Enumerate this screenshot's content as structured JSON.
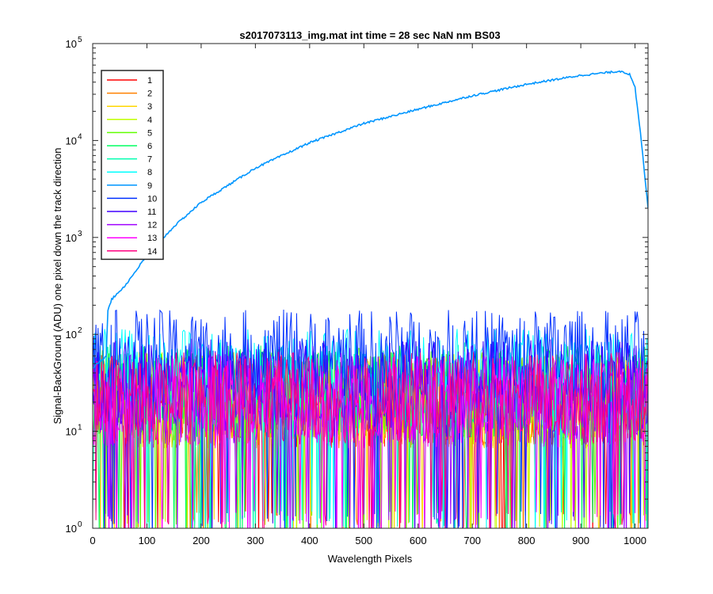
{
  "chart_data": {
    "type": "line",
    "title": "s2017073113_img.mat int time = 28 sec  NaN nm BS03",
    "xlabel": "Wavelength Pixels",
    "ylabel": "Signal-BackGround (ADU) one pixel down the track direction",
    "xlim": [
      0,
      1024
    ],
    "ylim": [
      1,
      100000
    ],
    "yscale": "log",
    "x_ticks": [
      "0",
      "100",
      "200",
      "300",
      "400",
      "500",
      "600",
      "700",
      "800",
      "900",
      "1000"
    ],
    "y_ticks": [
      {
        "base": "10",
        "exp": "0"
      },
      {
        "base": "10",
        "exp": "1"
      },
      {
        "base": "10",
        "exp": "2"
      },
      {
        "base": "10",
        "exp": "3"
      },
      {
        "base": "10",
        "exp": "4"
      },
      {
        "base": "10",
        "exp": "5"
      }
    ],
    "grid": false,
    "legend_position": "top-left",
    "series": [
      {
        "name": "1",
        "color": "#ff0000",
        "profile": "noise",
        "level": 20
      },
      {
        "name": "2",
        "color": "#ff8000",
        "profile": "noise",
        "level": 20
      },
      {
        "name": "3",
        "color": "#ffd700",
        "profile": "noise",
        "level": 20
      },
      {
        "name": "4",
        "color": "#c0ff00",
        "profile": "noise",
        "level": 22
      },
      {
        "name": "5",
        "color": "#60ff00",
        "profile": "noise",
        "level": 24
      },
      {
        "name": "6",
        "color": "#00ff60",
        "profile": "noise",
        "level": 26
      },
      {
        "name": "7",
        "color": "#00ffb0",
        "profile": "noise",
        "level": 28
      },
      {
        "name": "8",
        "color": "#00ffff",
        "profile": "noise",
        "level": 38
      },
      {
        "name": "9",
        "color": "#0096ff",
        "profile": "signal",
        "x": [
          0,
          25,
          28,
          35,
          60,
          100,
          150,
          200,
          300,
          400,
          500,
          600,
          700,
          800,
          900,
          960,
          975,
          990,
          1000,
          1010,
          1024
        ],
        "y": [
          45,
          60,
          180,
          230,
          320,
          650,
          1300,
          2300,
          5200,
          9500,
          15000,
          21000,
          29000,
          38000,
          47000,
          51000,
          52000,
          48000,
          35000,
          12000,
          2000
        ]
      },
      {
        "name": "10",
        "color": "#0030ff",
        "profile": "noise",
        "level": 60
      },
      {
        "name": "11",
        "color": "#4000ff",
        "profile": "noise",
        "level": 30
      },
      {
        "name": "12",
        "color": "#a000ff",
        "profile": "noise",
        "level": 22
      },
      {
        "name": "13",
        "color": "#ff00ff",
        "profile": "noise",
        "level": 20
      },
      {
        "name": "14",
        "color": "#ff0080",
        "profile": "noise",
        "level": 22
      }
    ]
  }
}
